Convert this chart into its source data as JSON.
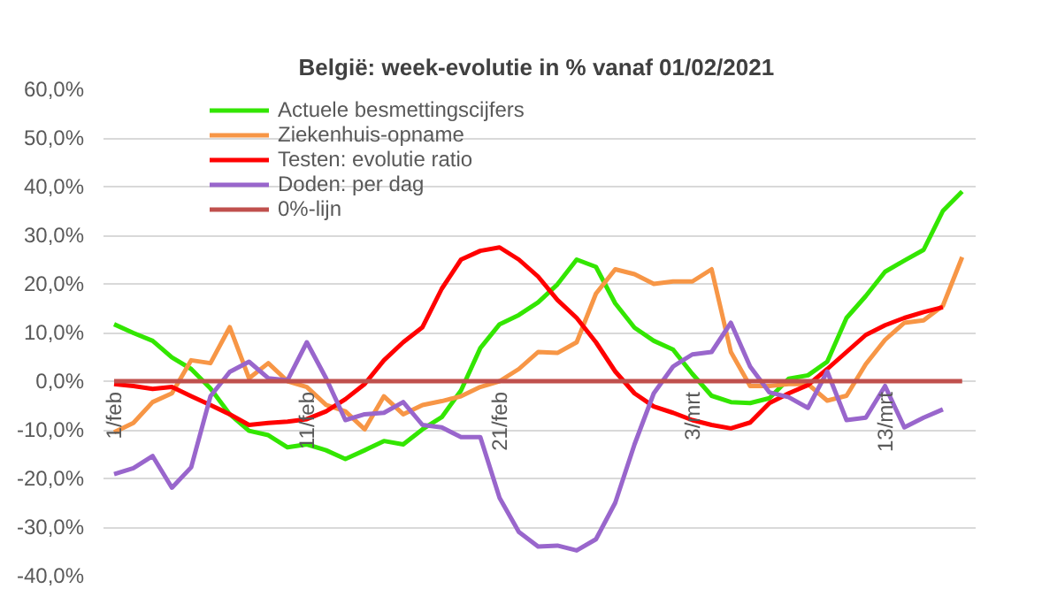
{
  "chart_data": {
    "type": "line",
    "title": "België: week-evolutie in %  vanaf 01/02/2021",
    "categories": [
      "1/feb",
      null,
      null,
      null,
      null,
      null,
      null,
      null,
      null,
      null,
      "11/feb",
      null,
      null,
      null,
      null,
      null,
      null,
      null,
      null,
      null,
      "21/feb",
      null,
      null,
      null,
      null,
      null,
      null,
      null,
      null,
      null,
      "3/mrt",
      null,
      null,
      null,
      null,
      null,
      null,
      null,
      null,
      null,
      "13/mrt",
      null,
      null,
      null,
      null
    ],
    "series": [
      {
        "name": "Actuele besmettingscijfers",
        "color": "#33e600",
        "values": [
          11.7,
          9.9,
          8.3,
          4.9,
          2.5,
          -1.5,
          -6.8,
          -10.2,
          -11.1,
          -13.6,
          -13,
          -14.2,
          -16,
          -14.2,
          -12.3,
          -13,
          -9.9,
          -7.4,
          -1.9,
          6.8,
          11.7,
          13.6,
          16.2,
          19.9,
          25,
          23.5,
          16,
          11,
          8.3,
          6.5,
          1.5,
          -3,
          -4.3,
          -4.5,
          -3.5,
          0.5,
          1.2,
          4,
          13,
          17.5,
          22.5,
          24.8,
          27,
          35,
          39
        ]
      },
      {
        "name": "Ziekenhuis-opname",
        "color": "#f79646",
        "values": [
          -10.5,
          -8.6,
          -4.3,
          -2.5,
          4.3,
          3.7,
          11.1,
          0.6,
          3.7,
          0,
          -1.2,
          -4.9,
          -6.2,
          -9.9,
          -3.1,
          -6.8,
          -4.9,
          -4.1,
          -3.1,
          -1.2,
          0,
          2.5,
          6,
          5.8,
          8,
          18,
          23,
          22,
          20,
          20.5,
          20.5,
          23,
          6,
          -1,
          -1,
          -0.6,
          -0.6,
          -4,
          -3,
          3.5,
          8.5,
          12,
          12.5,
          15.5,
          25.5
        ]
      },
      {
        "name": "Testen: evolutie ratio",
        "color": "#ff0000",
        "values": [
          -0.6,
          -1,
          -1.6,
          -1.2,
          -3.1,
          -4.9,
          -6.8,
          -9,
          -8.6,
          -8.3,
          -7.8,
          -6.2,
          -3.7,
          -0.6,
          4.3,
          8,
          11.1,
          19,
          25,
          26.8,
          27.5,
          25,
          21.5,
          16.7,
          13,
          8,
          2,
          -2.5,
          -5.2,
          -6.5,
          -8,
          -9,
          -9.7,
          -8.5,
          -4.5,
          -2.5,
          -0.8,
          2.5,
          6,
          9.5,
          11.5,
          13,
          14.2,
          15.2,
          null
        ]
      },
      {
        "name": "Doden: per dag",
        "color": "#9966cc",
        "values": [
          -19.1,
          -17.9,
          -15.4,
          -21.9,
          -17.7,
          -3.1,
          1.9,
          4,
          0.6,
          0.2,
          8,
          0.6,
          -8,
          -6.8,
          -6.5,
          -4.3,
          -9,
          -9.5,
          -11.5,
          -11.5,
          -24,
          -31,
          -34,
          -33.8,
          -34.8,
          -32.5,
          -25,
          -13,
          -2.5,
          3,
          5.5,
          6,
          12,
          3,
          -2.3,
          -3.3,
          -5.5,
          2,
          -8,
          -7.5,
          -1,
          -9.5,
          -7.5,
          -5.8,
          null
        ]
      },
      {
        "name": "0%-lijn",
        "color": "#c0504d",
        "values": [
          0,
          0,
          0,
          0,
          0,
          0,
          0,
          0,
          0,
          0,
          0,
          0,
          0,
          0,
          0,
          0,
          0,
          0,
          0,
          0,
          0,
          0,
          0,
          0,
          0,
          0,
          0,
          0,
          0,
          0,
          0,
          0,
          0,
          0,
          0,
          0,
          0,
          0,
          0,
          0,
          0,
          0,
          0,
          0,
          0
        ]
      }
    ],
    "ylim": [
      -40,
      60
    ],
    "yticks": [
      {
        "value": -40,
        "label": "-40,0%"
      },
      {
        "value": -30,
        "label": "-30,0%"
      },
      {
        "value": -20,
        "label": "-20,0%"
      },
      {
        "value": -10,
        "label": "-10,0%"
      },
      {
        "value": 0,
        "label": "0,0%"
      },
      {
        "value": 10,
        "label": "10,0%"
      },
      {
        "value": 20,
        "label": "20,0%"
      },
      {
        "value": 30,
        "label": "30,0%"
      },
      {
        "value": 40,
        "label": "40,0%"
      },
      {
        "value": 50,
        "label": "50,0%"
      },
      {
        "value": 60,
        "label": "60,0%"
      }
    ],
    "grid": "y",
    "legend": "top left",
    "marker": "none",
    "line_style": "solid"
  }
}
